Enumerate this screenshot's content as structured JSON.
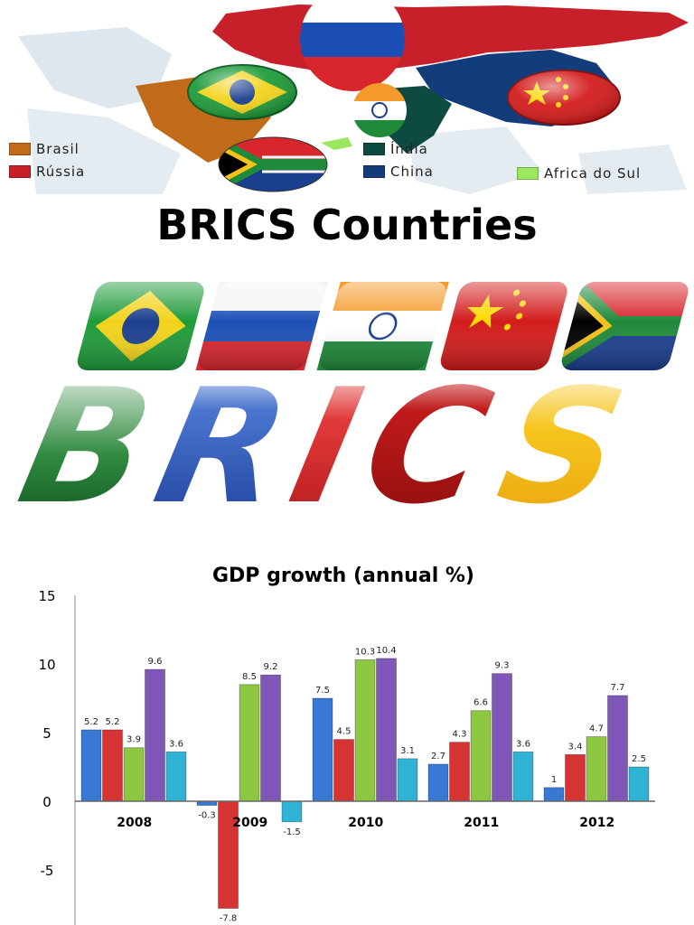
{
  "legend": [
    {
      "label": "Brasil",
      "color": "#c06a1a"
    },
    {
      "label": "Rússia",
      "color": "#c8202a"
    },
    {
      "label": "Índia",
      "color": "#0d4a40"
    },
    {
      "label": "China",
      "color": "#123d7a"
    },
    {
      "label": "Africa do Sul",
      "color": "#9be860"
    }
  ],
  "title": "BRICS Countries",
  "logo_text": [
    "B",
    "R",
    "I",
    "C",
    "S"
  ],
  "chart_data": {
    "type": "bar",
    "title": "GDP  growth (annual %)",
    "categories": [
      "2008",
      "2009",
      "2010",
      "2011",
      "2012"
    ],
    "series": [
      {
        "values": [
          5.2,
          -0.3,
          7.5,
          2.7,
          1
        ],
        "color": "#3a78d6"
      },
      {
        "values": [
          5.2,
          -7.8,
          4.5,
          4.3,
          3.4
        ],
        "color": "#d63434"
      },
      {
        "values": [
          3.9,
          8.5,
          10.3,
          6.6,
          4.7
        ],
        "color": "#8dc63f"
      },
      {
        "values": [
          9.6,
          9.2,
          10.4,
          9.3,
          7.7
        ],
        "color": "#7e57b8"
      },
      {
        "values": [
          3.6,
          -1.5,
          3.1,
          3.6,
          2.5
        ],
        "color": "#2fb4d6"
      }
    ],
    "yticks": [
      "15",
      "10",
      "5",
      "0",
      "-5"
    ],
    "ylim": [
      -8,
      15
    ],
    "grid": false
  }
}
